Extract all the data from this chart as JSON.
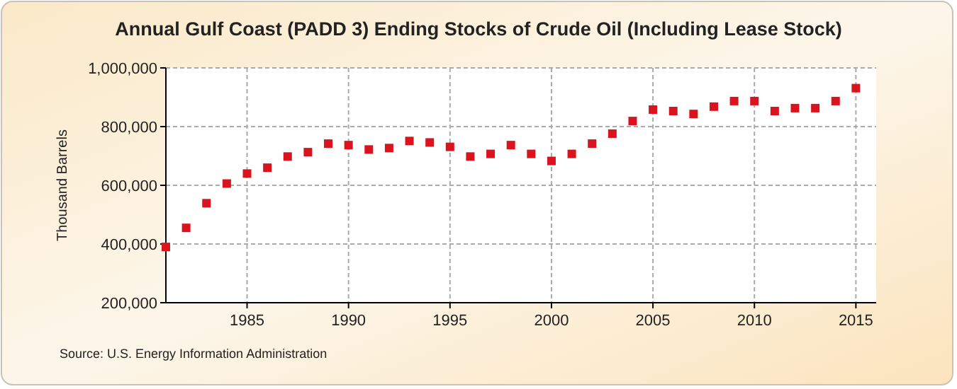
{
  "chart_data": {
    "type": "scatter",
    "title": "Annual Gulf Coast (PADD 3) Ending Stocks of Crude Oil (Including Lease Stock)",
    "ylabel": "Thousand Barrels",
    "annotations": [
      "Source: U.S. Energy Information Administration"
    ],
    "x": [
      1981,
      1982,
      1983,
      1984,
      1985,
      1986,
      1987,
      1988,
      1989,
      1990,
      1991,
      1992,
      1993,
      1994,
      1995,
      1996,
      1997,
      1998,
      1999,
      2000,
      2001,
      2002,
      2003,
      2004,
      2005,
      2006,
      2007,
      2008,
      2009,
      2010,
      2011,
      2012,
      2013,
      2014,
      2015
    ],
    "series": [
      {
        "color": "#d9141e",
        "values": [
          390000,
          455000,
          539000,
          606000,
          640000,
          660000,
          698000,
          713000,
          742000,
          737000,
          722000,
          727000,
          751000,
          746000,
          731000,
          698000,
          707000,
          737000,
          707000,
          683000,
          707000,
          742000,
          776000,
          819000,
          858000,
          853000,
          843000,
          868000,
          887000,
          887000,
          853000,
          863000,
          863000,
          887000,
          931000
        ]
      }
    ],
    "xlim": [
      1981,
      2016
    ],
    "xticks": [
      1985,
      1990,
      1995,
      2000,
      2005,
      2010,
      2015
    ],
    "ylim": [
      200000,
      1000000
    ],
    "yticks": [
      {
        "value": 200000,
        "label": "200,000"
      },
      {
        "value": 400000,
        "label": "400,000"
      },
      {
        "value": 600000,
        "label": "600,000"
      },
      {
        "value": 800000,
        "label": "800,000"
      },
      {
        "value": 1000000,
        "label": "1,000,000"
      }
    ],
    "grid": true,
    "marker": "square"
  }
}
